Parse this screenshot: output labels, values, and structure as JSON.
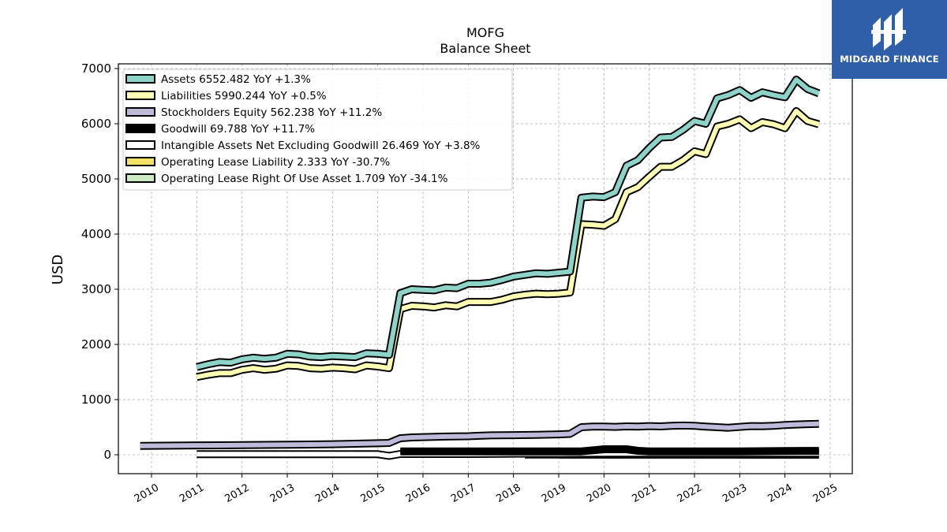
{
  "brand": {
    "name": "MIDGARD FINANCE",
    "color": "#2f5fa8",
    "icon": "midgard-logo-icon"
  },
  "chart_data": {
    "type": "line",
    "title": "MOFG",
    "subtitle": "Balance  Sheet",
    "xlabel": "",
    "ylabel": "USD",
    "xlim": [
      2009.7,
      2025.0
    ],
    "ylim": [
      -350,
      7100
    ],
    "xticks": [
      "2010",
      "2011",
      "2012",
      "2013",
      "2014",
      "2015",
      "2016",
      "2017",
      "2018",
      "2019",
      "2020",
      "2021",
      "2022",
      "2023",
      "2024",
      "2025"
    ],
    "yticks": [
      "0",
      "1000",
      "2000",
      "3000",
      "4000",
      "5000",
      "6000",
      "7000"
    ],
    "grid": true,
    "legend_position": "top-left",
    "series": [
      {
        "name": "Assets",
        "legend": "Assets  6552.482 YoY +1.3%",
        "color": "#8dd3c7",
        "x": [
          2011.0,
          2011.25,
          2011.5,
          2011.75,
          2012.0,
          2012.25,
          2012.5,
          2012.75,
          2013.0,
          2013.25,
          2013.5,
          2013.75,
          2014.0,
          2014.25,
          2014.5,
          2014.75,
          2015.0,
          2015.25,
          2015.5,
          2015.75,
          2016.0,
          2016.25,
          2016.5,
          2016.75,
          2017.0,
          2017.25,
          2017.5,
          2017.75,
          2018.0,
          2018.25,
          2018.5,
          2018.75,
          2019.0,
          2019.25,
          2019.5,
          2019.75,
          2020.0,
          2020.25,
          2020.5,
          2020.75,
          2021.0,
          2021.25,
          2021.5,
          2021.75,
          2022.0,
          2022.25,
          2022.5,
          2022.75,
          2023.0,
          2023.25,
          2023.5,
          2023.75,
          2024.0,
          2024.25,
          2024.5,
          2024.75
        ],
        "values": [
          1590,
          1640,
          1680,
          1670,
          1730,
          1760,
          1740,
          1760,
          1830,
          1820,
          1780,
          1770,
          1790,
          1780,
          1770,
          1840,
          1830,
          1810,
          2930,
          3000,
          2990,
          2980,
          3030,
          3020,
          3100,
          3100,
          3120,
          3170,
          3230,
          3260,
          3290,
          3280,
          3300,
          3320,
          4660,
          4680,
          4670,
          4760,
          5240,
          5340,
          5560,
          5750,
          5760,
          5890,
          6050,
          6000,
          6460,
          6520,
          6610,
          6470,
          6570,
          6520,
          6480,
          6800,
          6630,
          6552
        ]
      },
      {
        "name": "Liabilities",
        "legend": "Liabilities  5990.244 YoY +0.5%",
        "color": "#ffffb3",
        "x": [
          2011.0,
          2011.25,
          2011.5,
          2011.75,
          2012.0,
          2012.25,
          2012.5,
          2012.75,
          2013.0,
          2013.25,
          2013.5,
          2013.75,
          2014.0,
          2014.25,
          2014.5,
          2014.75,
          2015.0,
          2015.25,
          2015.5,
          2015.75,
          2016.0,
          2016.25,
          2016.5,
          2016.75,
          2017.0,
          2017.25,
          2017.5,
          2017.75,
          2018.0,
          2018.25,
          2018.5,
          2018.75,
          2019.0,
          2019.25,
          2019.5,
          2019.75,
          2020.0,
          2020.25,
          2020.5,
          2020.75,
          2021.0,
          2021.25,
          2021.5,
          2021.75,
          2022.0,
          2022.25,
          2022.5,
          2022.75,
          2023.0,
          2023.25,
          2023.5,
          2023.75,
          2024.0,
          2024.25,
          2024.5,
          2024.75
        ],
        "values": [
          1410,
          1450,
          1480,
          1480,
          1540,
          1570,
          1540,
          1560,
          1620,
          1610,
          1570,
          1560,
          1580,
          1570,
          1550,
          1620,
          1600,
          1570,
          2640,
          2700,
          2690,
          2670,
          2710,
          2690,
          2770,
          2770,
          2770,
          2810,
          2870,
          2900,
          2920,
          2910,
          2920,
          2940,
          4180,
          4170,
          4150,
          4270,
          4760,
          4850,
          5040,
          5220,
          5220,
          5340,
          5500,
          5450,
          5950,
          6000,
          6080,
          5920,
          6030,
          5990,
          5920,
          6230,
          6050,
          5990
        ]
      },
      {
        "name": "Stockholders Equity",
        "legend": "Stockholders Equity  562.238 YoY +11.2%",
        "color": "#bebada",
        "x": [
          2009.75,
          2010.0,
          2010.5,
          2011.0,
          2011.5,
          2012.0,
          2012.5,
          2013.0,
          2013.5,
          2014.0,
          2014.5,
          2015.0,
          2015.25,
          2015.5,
          2015.75,
          2016.0,
          2016.5,
          2017.0,
          2017.25,
          2017.5,
          2018.0,
          2018.5,
          2019.0,
          2019.25,
          2019.5,
          2019.75,
          2020.0,
          2020.25,
          2020.5,
          2020.75,
          2021.0,
          2021.25,
          2021.5,
          2021.75,
          2022.0,
          2022.25,
          2022.5,
          2022.75,
          2023.0,
          2023.25,
          2023.5,
          2023.75,
          2024.0,
          2024.25,
          2024.5,
          2024.75
        ],
        "values": [
          160,
          163,
          166,
          170,
          172,
          174,
          178,
          182,
          185,
          192,
          200,
          208,
          214,
          300,
          315,
          320,
          330,
          335,
          345,
          352,
          355,
          362,
          370,
          378,
          500,
          510,
          512,
          505,
          515,
          510,
          520,
          515,
          525,
          530,
          525,
          510,
          500,
          490,
          505,
          520,
          518,
          525,
          540,
          548,
          555,
          562
        ]
      },
      {
        "name": "Goodwill",
        "legend": "Goodwill  69.788 YoY +11.7%",
        "color": "#000000",
        "x": [
          2015.5,
          2016.0,
          2017.0,
          2018.0,
          2019.0,
          2019.5,
          2020.0,
          2020.5,
          2020.75,
          2021.0,
          2022.0,
          2023.0,
          2024.0,
          2024.75
        ],
        "values": [
          62,
          62,
          62,
          62,
          62,
          62,
          100,
          100,
          72,
          62,
          62,
          62,
          69,
          70
        ]
      },
      {
        "name": "Intangible Assets Net Excluding Goodwill",
        "legend": "Intangible Assets Net Excluding Goodwill  26.469 YoY +3.8%",
        "color": "#ffffff",
        "x": [
          2011.0,
          2012.0,
          2013.0,
          2014.0,
          2015.0,
          2015.25,
          2015.5,
          2016.0,
          2017.0,
          2018.0,
          2019.0,
          2020.0,
          2021.0,
          2022.0,
          2023.0,
          2024.0,
          2024.75
        ],
        "values": [
          10,
          10,
          10,
          10,
          10,
          -20,
          15,
          15,
          15,
          20,
          20,
          25,
          25,
          25,
          25,
          26,
          26
        ]
      },
      {
        "name": "Operating Lease Liability",
        "legend": "Operating Lease Liability  2.333 YoY -30.7%",
        "color": "#f7e266",
        "x": [
          2019.0,
          2020.0,
          2021.0,
          2022.0,
          2023.0,
          2024.0,
          2024.75
        ],
        "values": [
          4,
          4,
          3.8,
          3.5,
          3.2,
          3.0,
          2.3
        ]
      },
      {
        "name": "Operating Lease Right Of Use Asset",
        "legend": "Operating Lease Right Of Use Asset  1.709 YoY -34.1%",
        "color": "#ccebc5",
        "x": [
          2018.25,
          2019.0,
          2020.0,
          2021.0,
          2022.0,
          2023.0,
          2024.0,
          2024.75
        ],
        "values": [
          3,
          3,
          3,
          2.8,
          2.5,
          2.3,
          2.1,
          1.7
        ]
      }
    ]
  }
}
